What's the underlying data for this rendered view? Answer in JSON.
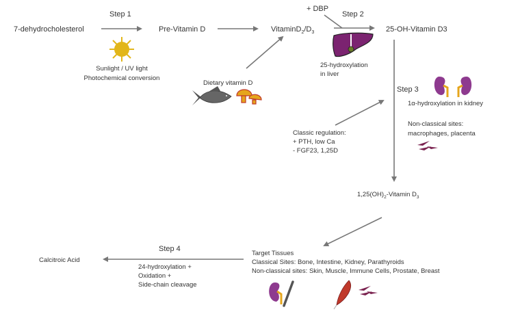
{
  "nodes": {
    "dhc": "7-dehydrocholesterol",
    "previtd": "Pre-Vitamin D",
    "vitd_main": "VitaminD",
    "vitd_sub1": "2",
    "vitd_sep": "/D",
    "vitd_sub2": "3",
    "ohd3": "25-OH-Vitamin D3",
    "calcitriol_main": "1,25(OH)",
    "calcitriol_sub": "2",
    "calcitriol_mid": "-Vitamin D",
    "calcitriol_sub2": "3",
    "calcitroic": "Calcitroic Acid"
  },
  "steps": {
    "step1": "Step 1",
    "step2": "Step 2",
    "step3": "Step 3",
    "step4": "Step 4"
  },
  "labels": {
    "sunlight": "Sunlight / UV light",
    "photochem": "Photochemical conversion",
    "dietary": "Dietary vitamin D",
    "dbp": "+ DBP",
    "liver1": "25-hydroxylation",
    "liver2": "in liver",
    "kidney": "1α-hydroxylation in kidney",
    "nonclass1": "Non-classical sites:",
    "nonclass2": "macrophages, placenta",
    "reg1": "Classic regulation:",
    "reg2": "+ PTH, low Ca",
    "reg3": "- FGF23, 1,25D",
    "target1": "Target Tissues",
    "target2": "Classical Sites: Bone, Intestine, Kidney, Parathyroids",
    "target3": "Non-classical sites: Skin, Muscle, Immune Cells, Prostate, Breast",
    "deg1": "24-hydroxylation +",
    "deg2": "Oxidation +",
    "deg3": "Side-chain cleavage"
  },
  "colors": {
    "sun": "#e2b619",
    "liver": "#7b2370",
    "kidney": "#8e3a8f",
    "fish": "#666666",
    "mushroom": "#e5a51c",
    "muscle": "#c0392b",
    "arrow": "#777777"
  }
}
